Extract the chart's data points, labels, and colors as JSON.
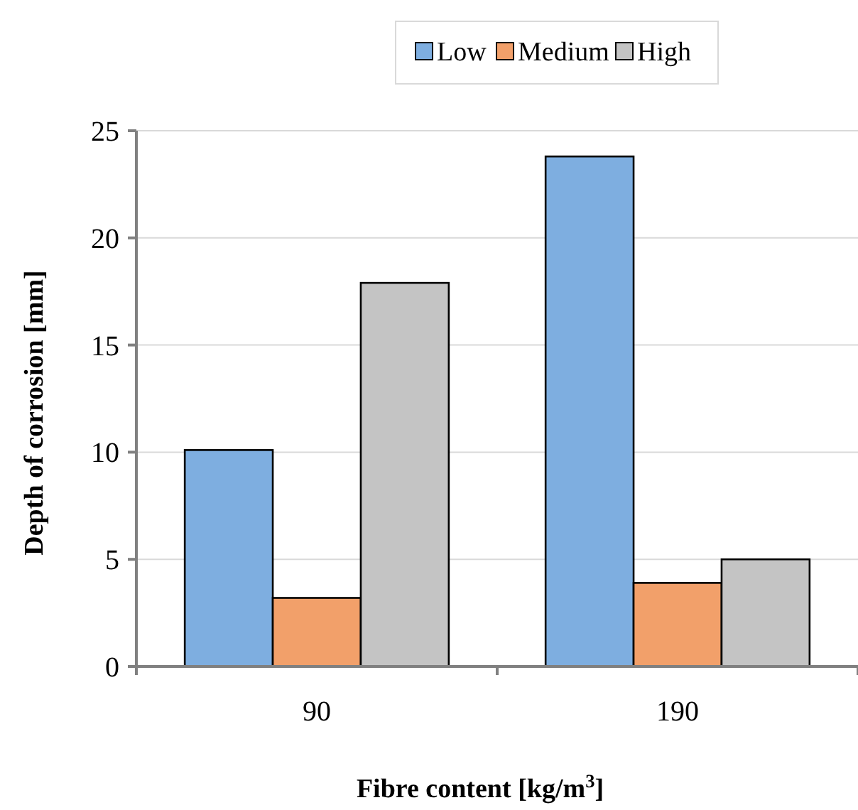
{
  "chart_data": {
    "type": "bar",
    "xlabel": "Fibre content [kg/m$^{3}$]",
    "ylabel": "Depth of corrosion [mm]",
    "categories": [
      "90",
      "190"
    ],
    "series": [
      {
        "name": "Low",
        "color": "#7eaee0",
        "values": [
          10.1,
          23.8
        ]
      },
      {
        "name": "Medium",
        "color": "#f2a06a",
        "values": [
          3.2,
          3.9
        ]
      },
      {
        "name": "High",
        "color": "#c4c4c4",
        "values": [
          17.9,
          5.0
        ]
      }
    ],
    "ylim": [
      0,
      25
    ],
    "yticks": [
      0,
      5,
      10,
      15,
      20,
      25
    ],
    "grid": "y",
    "legend": "top"
  }
}
